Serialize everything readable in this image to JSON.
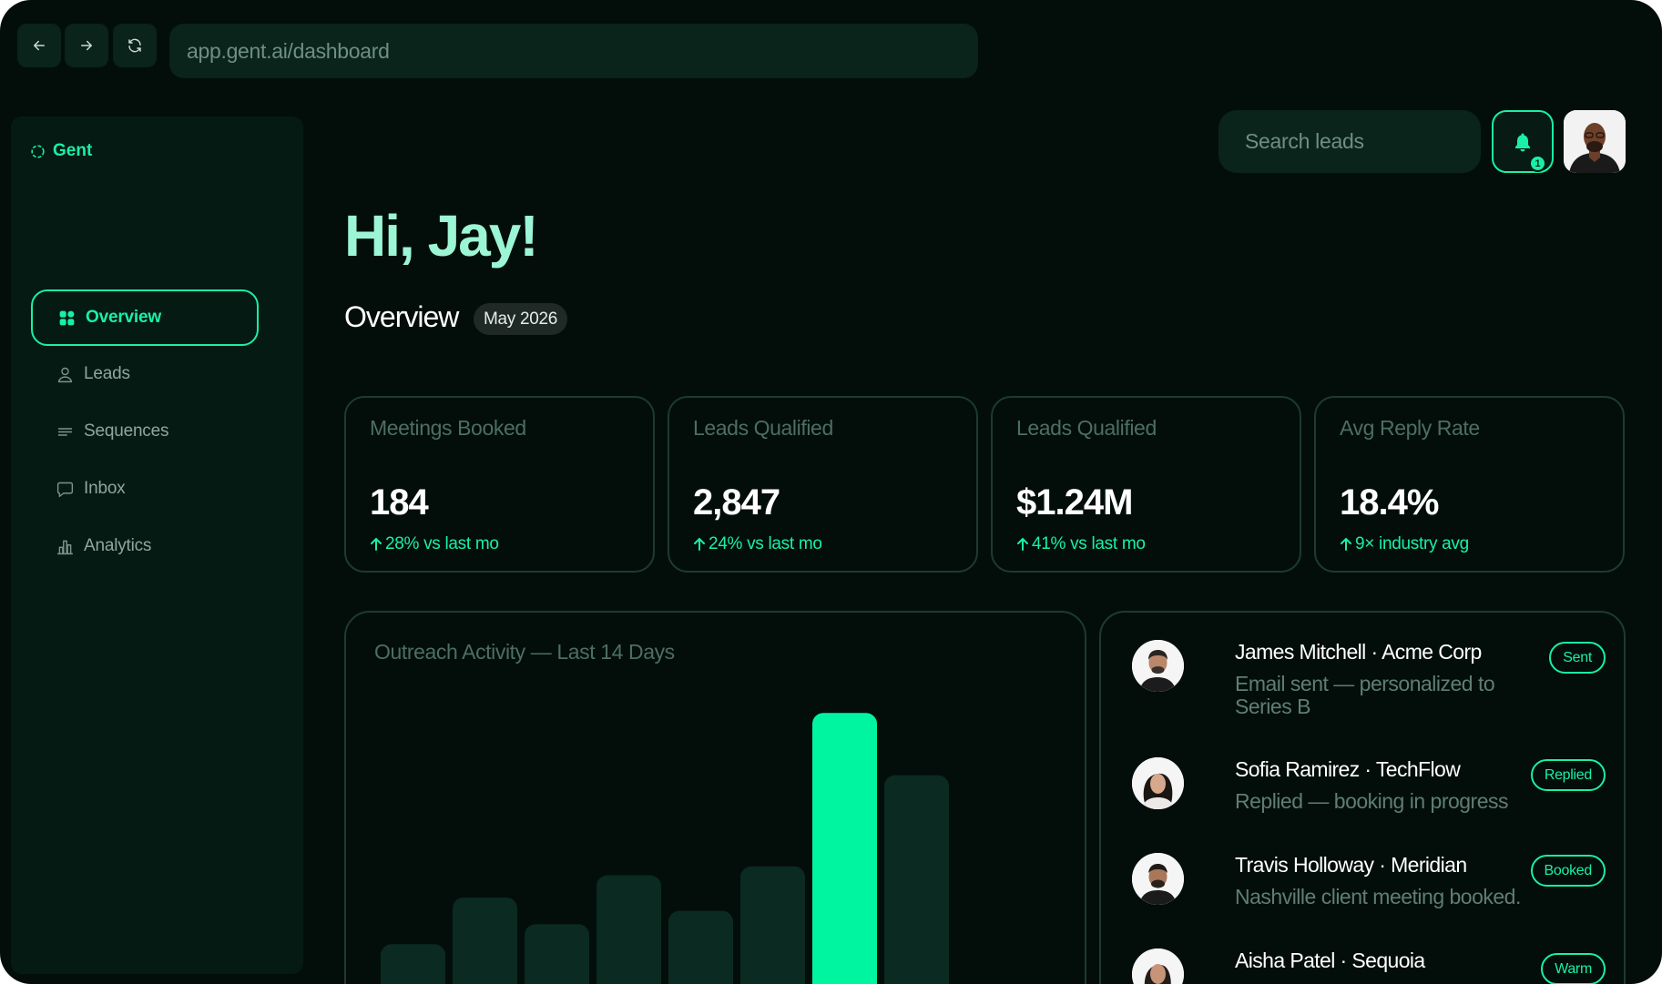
{
  "browser": {
    "url": "app.gent.ai/dashboard",
    "back_icon": "arrow-left-icon",
    "forward_icon": "arrow-right-icon",
    "reload_icon": "reload-icon"
  },
  "brand": {
    "name": "Gent",
    "icon": "logo-icon",
    "color": "#19f0a6"
  },
  "sidebar": {
    "items": [
      {
        "label": "Overview",
        "icon": "grid-icon",
        "active": true
      },
      {
        "label": "Leads",
        "icon": "user-icon",
        "active": false
      },
      {
        "label": "Sequences",
        "icon": "lines-icon",
        "active": false
      },
      {
        "label": "Inbox",
        "icon": "chat-icon",
        "active": false
      },
      {
        "label": "Analytics",
        "icon": "bar-chart-icon",
        "active": false
      }
    ]
  },
  "header": {
    "search_placeholder": "Search leads",
    "notifications": {
      "icon": "bell-icon",
      "count": "1"
    },
    "avatar": "user-avatar"
  },
  "greeting": "Hi, Jay!",
  "overview": {
    "title": "Overview",
    "period": "May 2026"
  },
  "stats": [
    {
      "label": "Meetings Booked",
      "value": "184",
      "delta": "28% vs last mo"
    },
    {
      "label": "Leads Qualified",
      "value": "2,847",
      "delta": "24% vs last mo"
    },
    {
      "label": "Leads Qualified",
      "value": "$1.24M",
      "delta": "41% vs last mo"
    },
    {
      "label": "Avg Reply Rate",
      "value": "18.4%",
      "delta": "9× industry avg"
    }
  ],
  "chart_data": {
    "type": "bar",
    "title": "Outreach Activity — Last 14 Days",
    "xlabel": "",
    "ylabel": "",
    "values": [
      31,
      52,
      40,
      62,
      46,
      66,
      135,
      107
    ],
    "highlight_index": 6,
    "ylim": [
      0,
      140
    ],
    "grid": false,
    "colors": {
      "bar": "#0b2a21",
      "highlight": "#00f5a0"
    }
  },
  "activity": [
    {
      "name": "James Mitchell · Acme Corp",
      "detail": "Email sent — personalized to Series B",
      "status": "Sent"
    },
    {
      "name": "Sofia Ramirez · TechFlow",
      "detail": "Replied — booking in progress",
      "status": "Replied"
    },
    {
      "name": "Travis Holloway · Meridian",
      "detail": "Nashville client meeting booked.",
      "status": "Booked"
    },
    {
      "name": "Aisha Patel · Sequoia",
      "detail": "",
      "status": "Warm"
    }
  ]
}
